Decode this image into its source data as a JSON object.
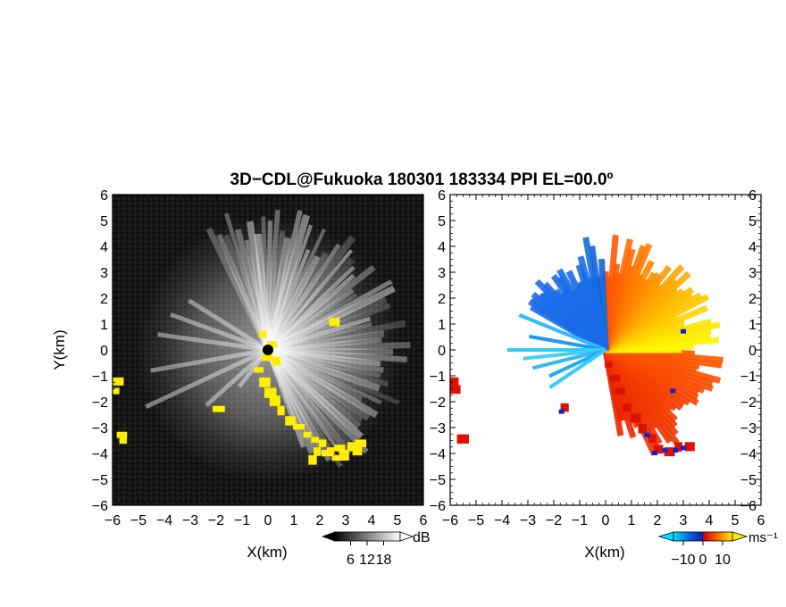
{
  "title": "3D−CDL@Fukuoka 180301 183334 PPI EL=00.0º",
  "chart_data": [
    {
      "type": "heatmap",
      "panel": "left",
      "quantity": "SNR",
      "xlabel": "X(km)",
      "ylabel": "Y(km)",
      "xlim": [
        -6,
        6
      ],
      "ylim": [
        -6,
        6
      ],
      "xticks": [
        "−6",
        "−5",
        "−4",
        "−3",
        "−2",
        "−1",
        "0",
        "1",
        "2",
        "3",
        "4",
        "5",
        "6"
      ],
      "yticks": [
        "6",
        "5",
        "4",
        "3",
        "2",
        "1",
        "0",
        "−1",
        "−2",
        "−3",
        "−4",
        "−5",
        "−6"
      ],
      "colorbar": {
        "unit": "dB",
        "ticks": [
          "6",
          "12",
          "18"
        ],
        "range": [
          0,
          24
        ],
        "colors": [
          "#000000",
          "#ffffff"
        ]
      },
      "highlight_color": "#ffee00",
      "background": "#111111"
    },
    {
      "type": "heatmap",
      "panel": "right",
      "quantity": "radial velocity",
      "xlabel": "X(km)",
      "xlim": [
        -6,
        6
      ],
      "ylim": [
        -6,
        6
      ],
      "xticks": [
        "−6",
        "−5",
        "−4",
        "−3",
        "−2",
        "−1",
        "0",
        "1",
        "2",
        "3",
        "4",
        "5",
        "6"
      ],
      "yticks": [
        "6",
        "5",
        "4",
        "3",
        "2",
        "1",
        "0",
        "−1",
        "−2",
        "−3",
        "−4",
        "−5",
        "−6"
      ],
      "colorbar": {
        "unit": "ms⁻¹",
        "ticks": [
          "−10",
          "0",
          "10"
        ],
        "range": [
          -15,
          15
        ],
        "colors": [
          "#00ddff",
          "#0033cc",
          "#cc0000",
          "#ff6600",
          "#ffee00"
        ]
      },
      "background": "#ffffff"
    }
  ]
}
